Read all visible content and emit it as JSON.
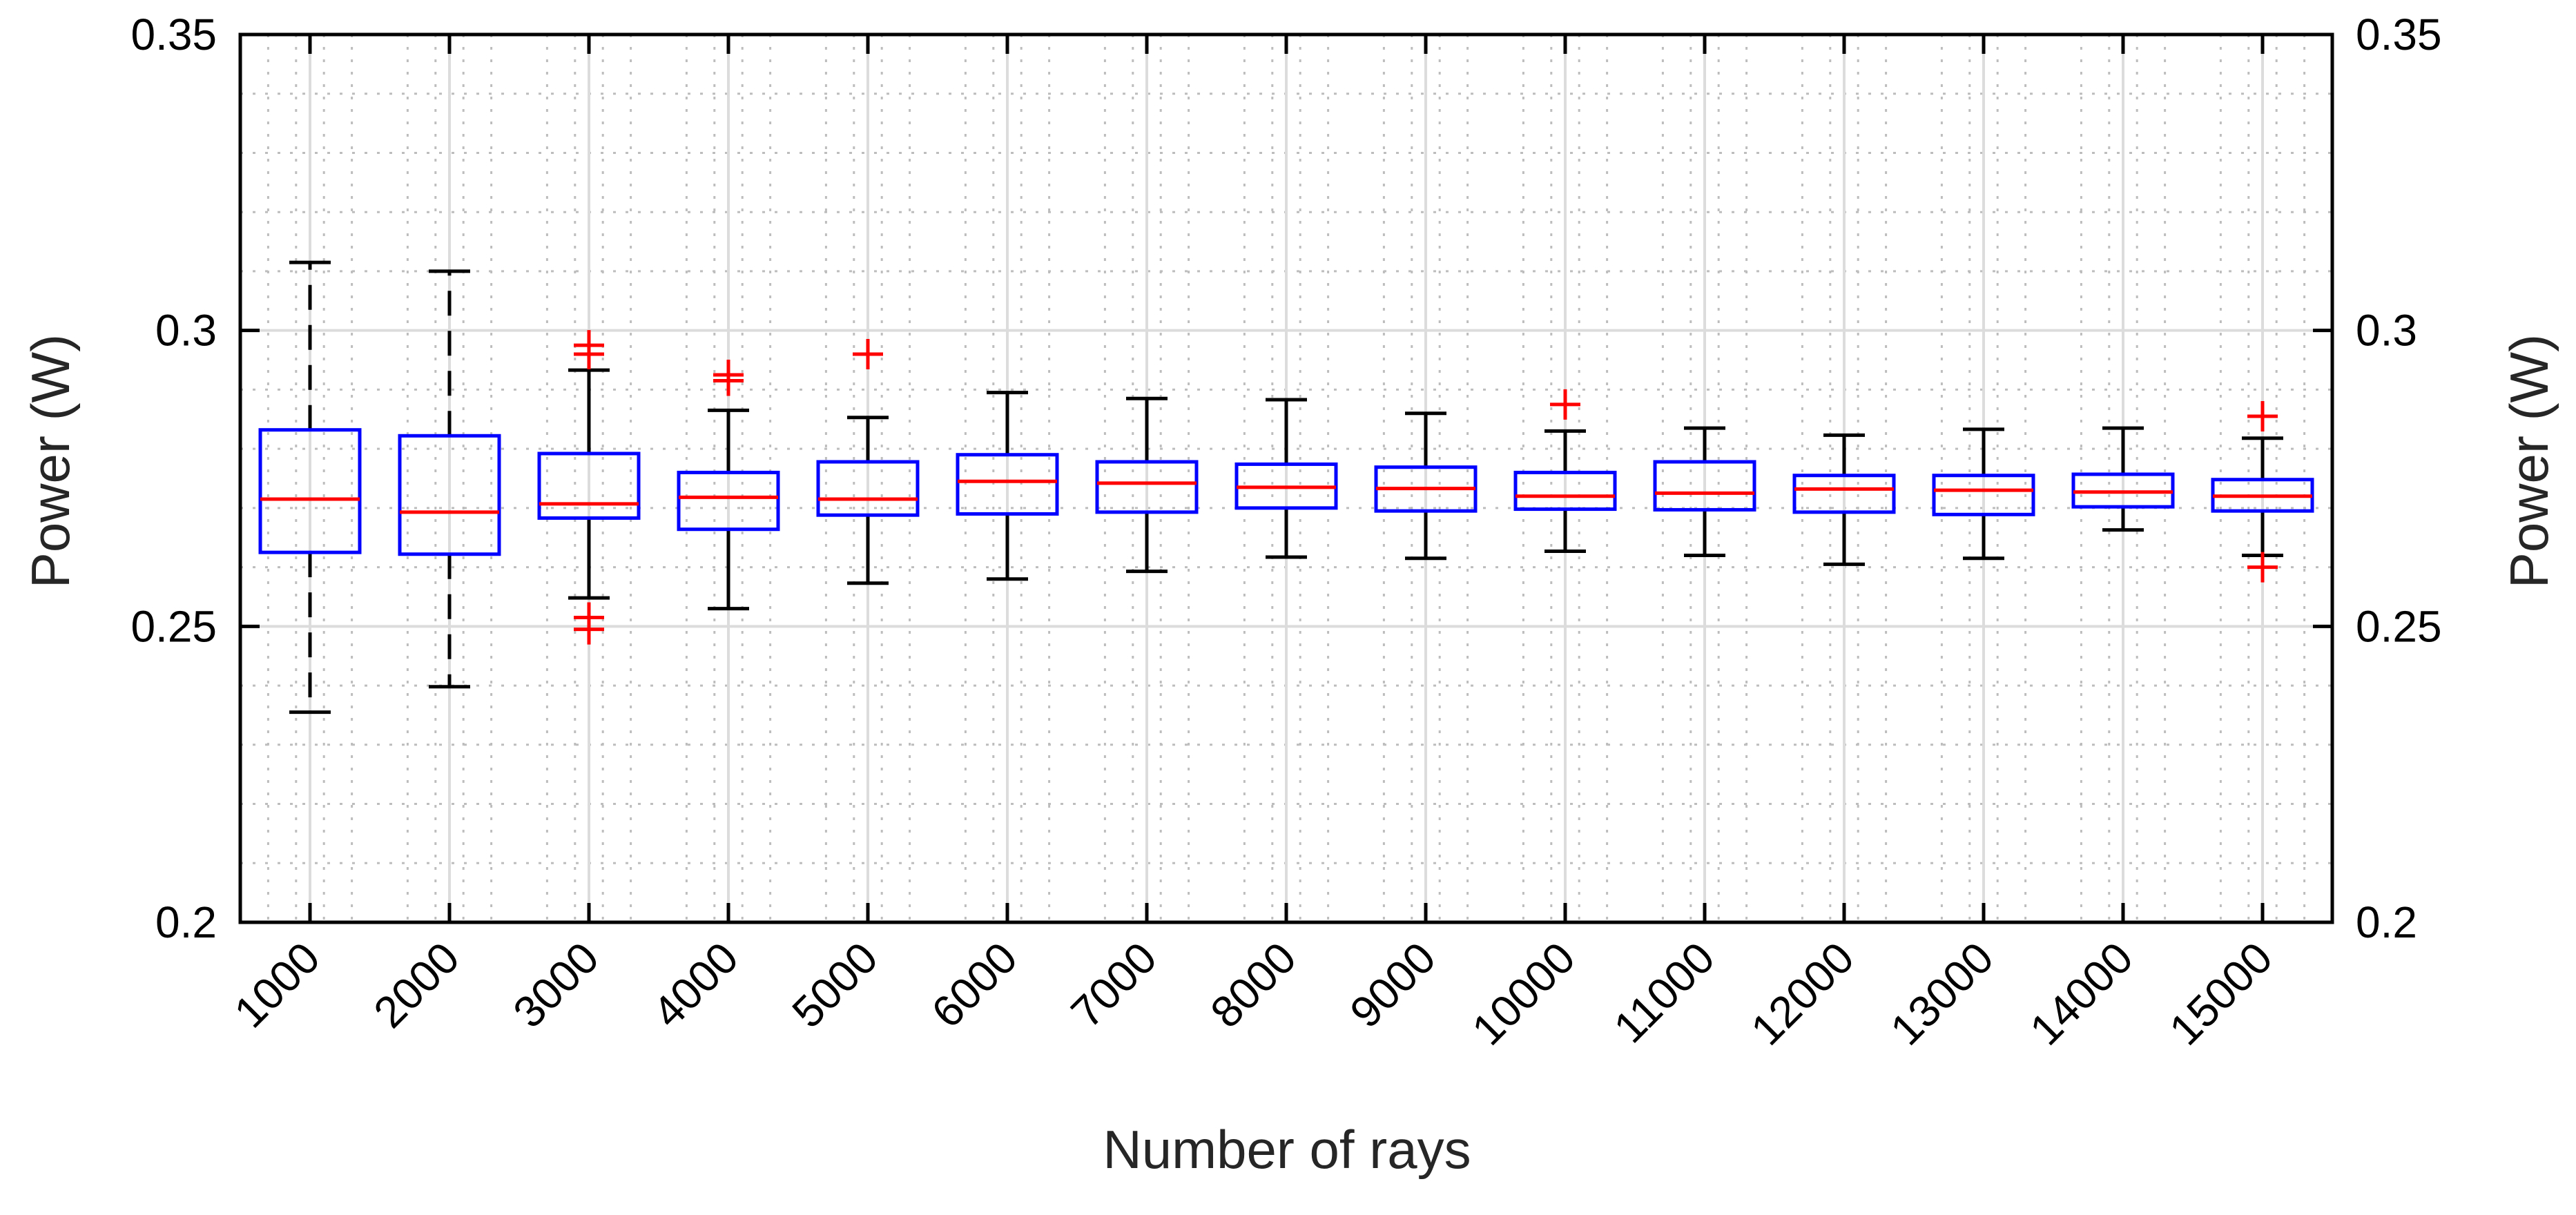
{
  "chart_data": {
    "type": "boxplot",
    "title": "",
    "xlabel": "Number of rays",
    "ylabel": "Power (W)",
    "ylabel_right": "Power (W)",
    "ylim": [
      0.2,
      0.35
    ],
    "yticks": [
      0.2,
      0.25,
      0.3,
      0.35
    ],
    "ytick_labels": [
      "0.2",
      "0.25",
      "0.3",
      "0.35"
    ],
    "grid": "major and minor",
    "categories": [
      "1000",
      "2000",
      "3000",
      "4000",
      "5000",
      "6000",
      "7000",
      "8000",
      "9000",
      "10000",
      "11000",
      "12000",
      "13000",
      "14000",
      "15000"
    ],
    "boxes": [
      {
        "category": "1000",
        "whisker_low": 0.2355,
        "q1": 0.2625,
        "median": 0.2715,
        "q3": 0.2832,
        "whisker_high": 0.3115,
        "outliers": []
      },
      {
        "category": "2000",
        "whisker_low": 0.2398,
        "q1": 0.2622,
        "median": 0.2693,
        "q3": 0.2822,
        "whisker_high": 0.31,
        "outliers": []
      },
      {
        "category": "3000",
        "whisker_low": 0.2548,
        "q1": 0.2683,
        "median": 0.2707,
        "q3": 0.2792,
        "whisker_high": 0.2933,
        "outliers": [
          0.2975,
          0.296,
          0.2515,
          0.2495
        ]
      },
      {
        "category": "4000",
        "whisker_low": 0.253,
        "q1": 0.2664,
        "median": 0.2718,
        "q3": 0.276,
        "whisker_high": 0.2865,
        "outliers": [
          0.2925,
          0.2915
        ]
      },
      {
        "category": "5000",
        "whisker_low": 0.2573,
        "q1": 0.2688,
        "median": 0.2715,
        "q3": 0.2778,
        "whisker_high": 0.2853,
        "outliers": [
          0.296
        ]
      },
      {
        "category": "6000",
        "whisker_low": 0.258,
        "q1": 0.269,
        "median": 0.2745,
        "q3": 0.279,
        "whisker_high": 0.2895,
        "outliers": []
      },
      {
        "category": "7000",
        "whisker_low": 0.2593,
        "q1": 0.2693,
        "median": 0.2742,
        "q3": 0.2778,
        "whisker_high": 0.2885,
        "outliers": []
      },
      {
        "category": "8000",
        "whisker_low": 0.2617,
        "q1": 0.27,
        "median": 0.2735,
        "q3": 0.2774,
        "whisker_high": 0.2883,
        "outliers": []
      },
      {
        "category": "9000",
        "whisker_low": 0.2615,
        "q1": 0.2695,
        "median": 0.2733,
        "q3": 0.2769,
        "whisker_high": 0.286,
        "outliers": []
      },
      {
        "category": "10000",
        "whisker_low": 0.2627,
        "q1": 0.2698,
        "median": 0.272,
        "q3": 0.276,
        "whisker_high": 0.283,
        "outliers": [
          0.2875
        ]
      },
      {
        "category": "11000",
        "whisker_low": 0.262,
        "q1": 0.2697,
        "median": 0.2725,
        "q3": 0.2778,
        "whisker_high": 0.2835,
        "outliers": []
      },
      {
        "category": "12000",
        "whisker_low": 0.2605,
        "q1": 0.2693,
        "median": 0.2732,
        "q3": 0.2755,
        "whisker_high": 0.2823,
        "outliers": []
      },
      {
        "category": "13000",
        "whisker_low": 0.2615,
        "q1": 0.2689,
        "median": 0.273,
        "q3": 0.2755,
        "whisker_high": 0.2833,
        "outliers": []
      },
      {
        "category": "14000",
        "whisker_low": 0.2663,
        "q1": 0.2702,
        "median": 0.2727,
        "q3": 0.2757,
        "whisker_high": 0.2835,
        "outliers": []
      },
      {
        "category": "15000",
        "whisker_low": 0.262,
        "q1": 0.2695,
        "median": 0.272,
        "q3": 0.2748,
        "whisker_high": 0.2818,
        "outliers": [
          0.2855,
          0.26
        ]
      }
    ],
    "colors": {
      "box": "#0000ff",
      "median": "#ff0000",
      "whisker": "#000000",
      "outlier": "#ff0000",
      "grid_major": "#dcdcdc",
      "grid_minor": "#bdbdbd",
      "axis": "#000000"
    }
  }
}
